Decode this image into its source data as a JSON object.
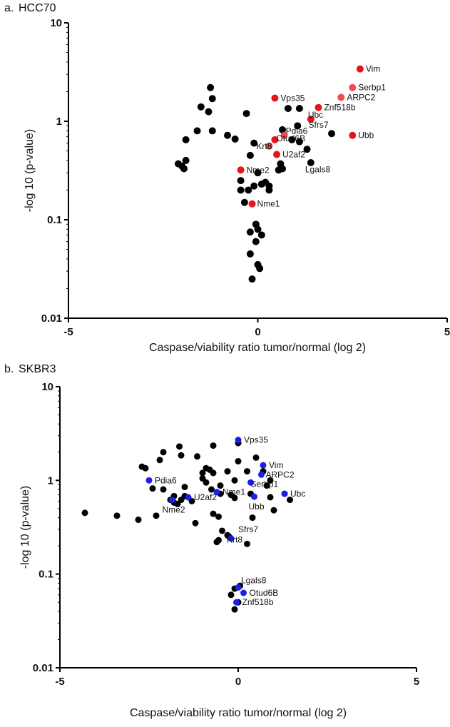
{
  "chart_data": [
    {
      "type": "scatter",
      "panel_label": "a.",
      "title": "HCC70",
      "xlabel": "Caspase/viability ratio tumor/normal (log 2)",
      "ylabel": "-log 10 (p-value)",
      "xlim": [
        -5,
        5
      ],
      "ylim": [
        0.01,
        10
      ],
      "yscale": "log",
      "x_ticks": [
        "-5",
        "0",
        "5"
      ],
      "y_ticks": [
        "10",
        "1",
        "0.1",
        "0.01"
      ],
      "colors": {
        "background": "#000000",
        "highlight": "#e8141b",
        "highlight_light": "#ef4b50"
      },
      "background_points": [
        [
          -1.25,
          2.2
        ],
        [
          -1.5,
          1.4
        ],
        [
          -1.2,
          1.7
        ],
        [
          -1.3,
          1.25
        ],
        [
          -0.3,
          1.2
        ],
        [
          -1.9,
          0.65
        ],
        [
          -1.6,
          0.8
        ],
        [
          -1.2,
          0.8
        ],
        [
          -0.8,
          0.72
        ],
        [
          -0.6,
          0.66
        ],
        [
          -0.1,
          0.6
        ],
        [
          -0.2,
          0.45
        ],
        [
          -2.1,
          0.37
        ],
        [
          -2.0,
          0.35
        ],
        [
          -1.95,
          0.33
        ],
        [
          -1.9,
          0.4
        ],
        [
          -0.45,
          0.25
        ],
        [
          -0.45,
          0.2
        ],
        [
          -0.25,
          0.2
        ],
        [
          -0.1,
          0.22
        ],
        [
          0.1,
          0.23
        ],
        [
          0.2,
          0.24
        ],
        [
          0.3,
          0.2
        ],
        [
          0.3,
          0.22
        ],
        [
          0.0,
          0.3
        ],
        [
          -0.35,
          0.15
        ],
        [
          -0.05,
          0.09
        ],
        [
          0.0,
          0.08
        ],
        [
          -0.2,
          0.075
        ],
        [
          0.1,
          0.07
        ],
        [
          -0.05,
          0.06
        ],
        [
          -0.2,
          0.045
        ],
        [
          0.0,
          0.035
        ],
        [
          0.05,
          0.032
        ],
        [
          -0.15,
          0.025
        ],
        [
          0.65,
          0.33
        ],
        [
          0.55,
          0.32
        ],
        [
          0.6,
          0.37
        ],
        [
          0.65,
          0.82
        ],
        [
          0.8,
          1.35
        ],
        [
          1.1,
          1.35
        ],
        [
          1.05,
          0.9
        ],
        [
          1.3,
          0.52
        ],
        [
          1.4,
          0.38
        ],
        [
          1.95,
          0.75
        ],
        [
          0.9,
          0.65
        ],
        [
          1.1,
          0.62
        ]
      ],
      "highlight_points": [
        {
          "label": "Vim",
          "x": 2.7,
          "y": 3.4,
          "tone": "highlight"
        },
        {
          "label": "Serbp1",
          "x": 2.5,
          "y": 2.2,
          "tone": "highlight_light"
        },
        {
          "label": "ARPC2",
          "x": 2.2,
          "y": 1.75,
          "tone": "highlight_light"
        },
        {
          "label": "Vps35",
          "x": 0.45,
          "y": 1.72,
          "tone": "highlight"
        },
        {
          "label": "Znf518b",
          "x": 1.6,
          "y": 1.38,
          "tone": "highlight"
        },
        {
          "label": "Ubc",
          "x": 1.4,
          "y": 1.05,
          "tone": "highlight"
        },
        {
          "label": "Ubb",
          "x": 2.5,
          "y": 0.72,
          "tone": "highlight"
        },
        {
          "label": "Pdia6",
          "x": 0.7,
          "y": 0.72,
          "tone": "highlight_light"
        },
        {
          "label": "Otud6B",
          "x": 0.45,
          "y": 0.65,
          "tone": "highlight"
        },
        {
          "label": "Krt8",
          "x": 0.3,
          "y": 0.56,
          "tone": "highlight_light"
        },
        {
          "label": "U2af2",
          "x": 0.5,
          "y": 0.46,
          "tone": "highlight"
        },
        {
          "label": "Nme2",
          "x": -0.45,
          "y": 0.32,
          "tone": "highlight"
        },
        {
          "label": "Nme1",
          "x": -0.15,
          "y": 0.145,
          "tone": "highlight"
        }
      ],
      "unmarked_labels": [
        {
          "label": "Sfrs7",
          "x": 1.3,
          "y": 0.92
        },
        {
          "label": "Lgals8",
          "x": 1.4,
          "y": 0.37
        }
      ]
    },
    {
      "type": "scatter",
      "panel_label": "b.",
      "title": "SKBR3",
      "xlabel": "Caspase/viability ratio tumor/normal (log 2)",
      "ylabel": "-log 10 (p-value)",
      "xlim": [
        -5,
        5
      ],
      "ylim": [
        0.01,
        10
      ],
      "yscale": "log",
      "x_ticks": [
        "-5",
        "0",
        "5"
      ],
      "y_ticks": [
        "10",
        "1",
        "0.1",
        "0.01"
      ],
      "colors": {
        "background": "#000000",
        "highlight": "#1d1ee8",
        "highlight_light": "#1d1ee8"
      },
      "background_points": [
        [
          -2.7,
          1.4
        ],
        [
          -2.6,
          1.35
        ],
        [
          -2.4,
          0.82
        ],
        [
          -2.2,
          1.65
        ],
        [
          -2.1,
          2.0
        ],
        [
          -2.1,
          0.8
        ],
        [
          -1.9,
          0.62
        ],
        [
          -1.8,
          0.68
        ],
        [
          -1.65,
          2.3
        ],
        [
          -1.6,
          1.85
        ],
        [
          -1.5,
          0.85
        ],
        [
          -1.8,
          0.58
        ],
        [
          -1.7,
          0.56
        ],
        [
          -1.6,
          0.62
        ],
        [
          -1.3,
          0.6
        ],
        [
          -1.5,
          0.68
        ],
        [
          -1.15,
          1.8
        ],
        [
          -1.0,
          1.2
        ],
        [
          -0.9,
          1.35
        ],
        [
          -0.8,
          1.3
        ],
        [
          -0.7,
          2.35
        ],
        [
          -0.9,
          0.95
        ],
        [
          -1.0,
          1.05
        ],
        [
          -0.75,
          0.8
        ],
        [
          -0.7,
          1.2
        ],
        [
          -0.5,
          0.88
        ],
        [
          -0.3,
          1.25
        ],
        [
          -0.1,
          1.0
        ],
        [
          -0.2,
          0.7
        ],
        [
          -0.1,
          0.65
        ],
        [
          -0.5,
          0.72
        ],
        [
          0.0,
          1.6
        ],
        [
          0.0,
          2.5
        ],
        [
          0.25,
          1.25
        ],
        [
          0.35,
          0.72
        ],
        [
          0.5,
          1.75
        ],
        [
          0.7,
          1.25
        ],
        [
          0.9,
          1.0
        ],
        [
          0.9,
          0.66
        ],
        [
          0.8,
          0.88
        ],
        [
          1.0,
          0.48
        ],
        [
          1.3,
          0.72
        ],
        [
          1.45,
          0.62
        ],
        [
          -4.3,
          0.45
        ],
        [
          -3.4,
          0.42
        ],
        [
          -2.8,
          0.38
        ],
        [
          -2.3,
          0.42
        ],
        [
          -1.2,
          0.35
        ],
        [
          -0.7,
          0.44
        ],
        [
          -0.55,
          0.41
        ],
        [
          -0.55,
          0.23
        ],
        [
          -0.6,
          0.22
        ],
        [
          -0.45,
          0.29
        ],
        [
          -0.3,
          0.26
        ],
        [
          -0.25,
          0.25
        ],
        [
          0.25,
          0.21
        ],
        [
          0.4,
          0.4
        ],
        [
          0.05,
          0.075
        ],
        [
          -0.1,
          0.07
        ],
        [
          0.0,
          0.05
        ],
        [
          -0.2,
          0.06
        ],
        [
          -0.1,
          0.042
        ]
      ],
      "highlight_points": [
        {
          "label": "Vps35",
          "x": 0.0,
          "y": 2.7,
          "tone": "highlight"
        },
        {
          "label": "Vim",
          "x": 0.7,
          "y": 1.45,
          "tone": "highlight"
        },
        {
          "label": "ARPC2",
          "x": 0.65,
          "y": 1.15,
          "tone": "highlight"
        },
        {
          "label": "Serbp1",
          "x": 0.35,
          "y": 0.95,
          "tone": "highlight"
        },
        {
          "label": "Pdia6",
          "x": -2.5,
          "y": 1.0,
          "tone": "highlight"
        },
        {
          "label": "Nme1",
          "x": -0.6,
          "y": 0.75,
          "tone": "highlight"
        },
        {
          "label": "Ubc",
          "x": 1.3,
          "y": 0.72,
          "tone": "highlight"
        },
        {
          "label": "U2af2",
          "x": -1.4,
          "y": 0.66,
          "tone": "highlight"
        },
        {
          "label": "Nme2",
          "x": -1.85,
          "y": 0.62,
          "tone": "highlight"
        },
        {
          "label": "Ubb",
          "x": 0.45,
          "y": 0.67,
          "tone": "highlight"
        },
        {
          "label": "Krt8",
          "x": -0.2,
          "y": 0.24,
          "tone": "highlight"
        },
        {
          "label": "Lgals8",
          "x": 0.0,
          "y": 0.072,
          "tone": "highlight"
        },
        {
          "label": "Otud6B",
          "x": 0.15,
          "y": 0.063,
          "tone": "highlight"
        },
        {
          "label": "Znf518b",
          "x": -0.05,
          "y": 0.05,
          "tone": "highlight"
        }
      ],
      "unmarked_labels": [
        {
          "label": "Sfrs7",
          "x": 0.0,
          "y": 0.3
        }
      ]
    }
  ]
}
